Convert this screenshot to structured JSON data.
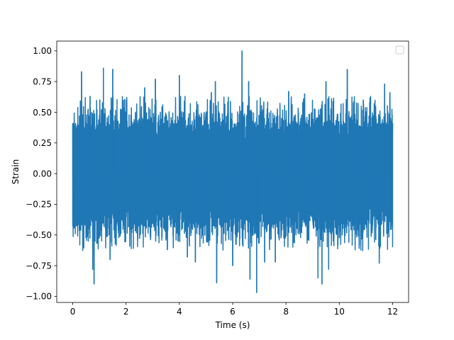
{
  "chart_data": {
    "type": "line",
    "title": "",
    "xlabel": "Time (s)",
    "ylabel": "Strain",
    "xlim": [
      -0.6,
      12.6
    ],
    "ylim": [
      -1.05,
      1.08
    ],
    "xticks": [
      0,
      2,
      4,
      6,
      8,
      10,
      12
    ],
    "xtick_labels": [
      "0",
      "2",
      "4",
      "6",
      "8",
      "10",
      "12"
    ],
    "yticks": [
      -1.0,
      -0.75,
      -0.5,
      -0.25,
      0.0,
      0.25,
      0.5,
      0.75,
      1.0
    ],
    "ytick_labels": [
      "−1.00",
      "−0.75",
      "−0.50",
      "−0.25",
      "0.00",
      "0.25",
      "0.50",
      "0.75",
      "1.00"
    ],
    "grid": false,
    "legend": {
      "location": "top-right",
      "entries": []
    },
    "series": [
      {
        "color": "#1f77b4",
        "x_start": 0,
        "x_end": 12,
        "typical_range": [
          -0.45,
          0.45
        ],
        "envelope_range": [
          -0.6,
          0.6
        ],
        "peaks": [
          {
            "x": 0.0,
            "y": -0.43
          },
          {
            "x": 0.0,
            "y": 0.41
          },
          {
            "x": 0.33,
            "y": 0.83
          },
          {
            "x": 0.65,
            "y": 0.63
          },
          {
            "x": 0.75,
            "y": -0.78
          },
          {
            "x": 0.8,
            "y": -0.9
          },
          {
            "x": 1.15,
            "y": 0.86
          },
          {
            "x": 1.4,
            "y": -0.7
          },
          {
            "x": 1.5,
            "y": 0.85
          },
          {
            "x": 2.7,
            "y": 0.7
          },
          {
            "x": 3.1,
            "y": 0.77
          },
          {
            "x": 3.55,
            "y": -0.62
          },
          {
            "x": 4.0,
            "y": 0.8
          },
          {
            "x": 4.3,
            "y": -0.68
          },
          {
            "x": 4.6,
            "y": -0.72
          },
          {
            "x": 5.2,
            "y": 0.66
          },
          {
            "x": 5.35,
            "y": 0.75
          },
          {
            "x": 5.4,
            "y": -0.89
          },
          {
            "x": 6.0,
            "y": -0.75
          },
          {
            "x": 6.35,
            "y": 1.0
          },
          {
            "x": 6.6,
            "y": 0.75
          },
          {
            "x": 6.65,
            "y": -0.86
          },
          {
            "x": 6.9,
            "y": -0.97
          },
          {
            "x": 7.2,
            "y": -0.72
          },
          {
            "x": 7.6,
            "y": -0.72
          },
          {
            "x": 8.1,
            "y": 0.67
          },
          {
            "x": 8.7,
            "y": 0.65
          },
          {
            "x": 9.2,
            "y": -0.85
          },
          {
            "x": 9.35,
            "y": -0.9
          },
          {
            "x": 9.5,
            "y": 0.75
          },
          {
            "x": 9.6,
            "y": -0.78
          },
          {
            "x": 10.3,
            "y": 0.85
          },
          {
            "x": 10.9,
            "y": 0.6
          },
          {
            "x": 11.5,
            "y": -0.73
          },
          {
            "x": 11.7,
            "y": 0.73
          },
          {
            "x": 11.9,
            "y": 0.66
          },
          {
            "x": 12.0,
            "y": -0.6
          },
          {
            "x": 12.0,
            "y": 0.41
          }
        ]
      }
    ]
  }
}
